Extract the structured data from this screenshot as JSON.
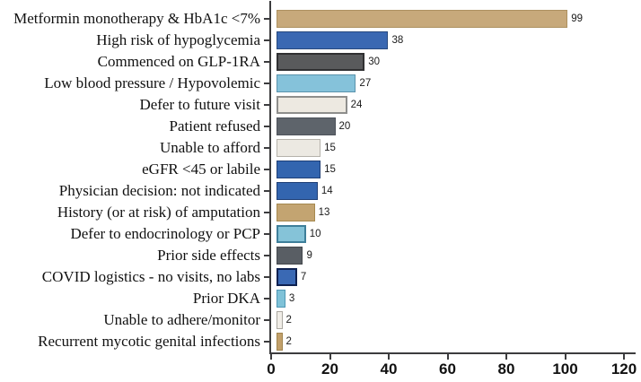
{
  "chart_data": {
    "type": "bar",
    "orientation": "horizontal",
    "title": "",
    "xlabel": "",
    "ylabel": "",
    "xlim": [
      0,
      120
    ],
    "x_ticks": [
      0,
      20,
      40,
      60,
      80,
      100,
      120
    ],
    "grid": false,
    "legend": false,
    "categories": [
      "Metformin monotherapy & HbA1c <7%",
      "High risk of hypoglycemia",
      "Commenced on GLP-1RA",
      "Low blood pressure / Hypovolemic",
      "Defer to future visit",
      "Patient refused",
      "Unable to afford",
      "eGFR <45 or labile",
      "Physician decision: not indicated",
      "History (or at risk) of amputation",
      "Defer to endocrinology or PCP",
      "Prior side effects",
      "COVID logistics - no visits, no labs",
      "Prior DKA",
      "Unable to adhere/monitor",
      "Recurrent mycotic genital infections"
    ],
    "values": [
      99,
      38,
      30,
      27,
      24,
      20,
      15,
      15,
      14,
      13,
      10,
      9,
      7,
      3,
      2,
      2
    ],
    "bar_styles": [
      {
        "fill": "#c7a97b",
        "border": "#ad9160",
        "border_width": 1
      },
      {
        "fill": "#3a68b2",
        "border": "#27497e",
        "border_width": 1
      },
      {
        "fill": "#595a5c",
        "border": "#303032",
        "border_width": 2
      },
      {
        "fill": "#85c2da",
        "border": "#5a93ac",
        "border_width": 1
      },
      {
        "fill": "#ede9e1",
        "border": "#8e8e8c",
        "border_width": 2
      },
      {
        "fill": "#5e646b",
        "border": "#4d525a",
        "border_width": 1
      },
      {
        "fill": "#ece9e2",
        "border": "#b5b2ab",
        "border_width": 1
      },
      {
        "fill": "#3365af",
        "border": "#1f3f76",
        "border_width": 1
      },
      {
        "fill": "#3365af",
        "border": "#1f3f76",
        "border_width": 1
      },
      {
        "fill": "#c3a471",
        "border": "#a6894f",
        "border_width": 1
      },
      {
        "fill": "#85c3d8",
        "border": "#3e7f9a",
        "border_width": 2
      },
      {
        "fill": "#595e64",
        "border": "#43474c",
        "border_width": 1
      },
      {
        "fill": "#3a69b4",
        "border": "#0e2150",
        "border_width": 2
      },
      {
        "fill": "#7fc2d8",
        "border": "#4e97b4",
        "border_width": 1
      },
      {
        "fill": "#f0ede7",
        "border": "#aba8a1",
        "border_width": 1
      },
      {
        "fill": "#c2a06b",
        "border": "#a1854f",
        "border_width": 1
      }
    ],
    "style": {
      "axis_color": "#3c3c3e",
      "tick_label_color": "#111111",
      "value_label_color": "#1a1a1a",
      "background": "#ffffff"
    }
  }
}
